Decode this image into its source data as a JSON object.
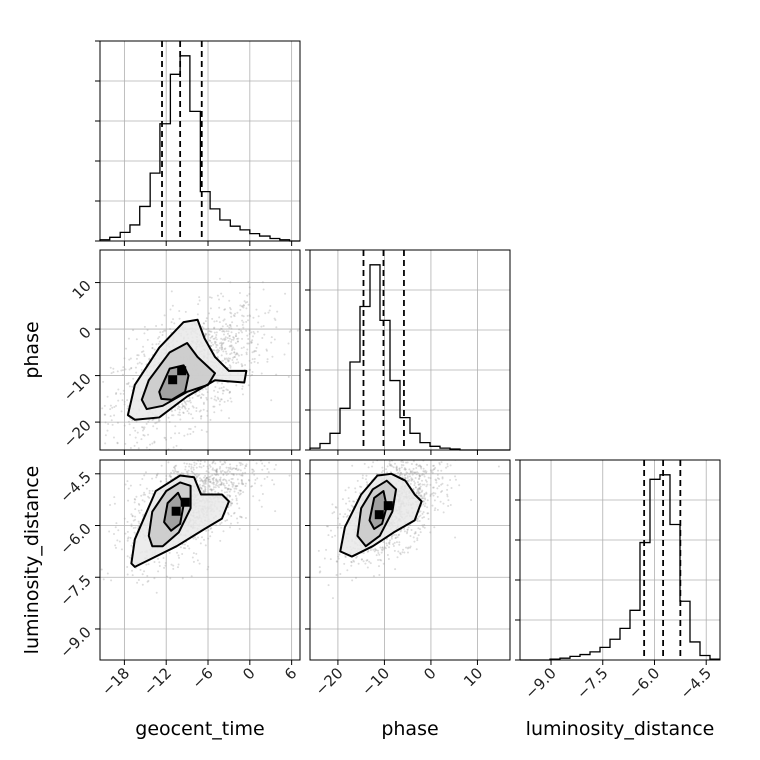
{
  "chart_data": {
    "type": "corner",
    "parameters": [
      "geocent_time",
      "phase",
      "luminosity_distance"
    ],
    "axis_labels": {
      "x": [
        "geocent_time",
        "phase",
        "luminosity_distance"
      ],
      "y": [
        "",
        "phase",
        "luminosity_distance"
      ]
    },
    "grid": true,
    "ranges": {
      "geocent_time": [
        -21.5,
        7.2
      ],
      "phase": [
        -26.0,
        17.0
      ],
      "luminosity_distance": [
        -9.9,
        -4.1
      ]
    },
    "ticks": {
      "geocent_time": [
        -18,
        -12,
        -6,
        0,
        6
      ],
      "phase": [
        -20,
        -10,
        0,
        10
      ],
      "luminosity_distance": [
        -9.0,
        -7.5,
        -6.0,
        -4.5
      ]
    },
    "tick_labels": {
      "geocent_time": [
        "−18",
        "−12",
        "−6",
        "0",
        "6"
      ],
      "phase": [
        "−20",
        "−10",
        "0",
        "10"
      ],
      "luminosity_distance": [
        "−9.0",
        "−7.5",
        "−6.0",
        "−4.5"
      ]
    },
    "quantiles": {
      "geocent_time": [
        -12.6,
        -10.0,
        -6.9
      ],
      "phase": [
        -14.5,
        -10.2,
        -5.8
      ],
      "luminosity_distance": [
        -6.3,
        -5.75,
        -5.25
      ]
    },
    "histograms": {
      "geocent_time": {
        "bin_edges": [
          -21.5,
          -20.1,
          -18.6,
          -17.2,
          -15.8,
          -14.3,
          -12.9,
          -11.4,
          -10.0,
          -8.6,
          -7.1,
          -5.7,
          -4.3,
          -2.8,
          -1.4,
          0.0,
          1.4,
          2.9,
          4.3,
          5.7,
          7.2
        ],
        "counts": [
          1,
          3,
          7,
          13,
          28,
          55,
          95,
          135,
          150,
          105,
          40,
          26,
          17,
          12,
          9,
          6,
          4,
          2,
          1,
          0
        ]
      },
      "phase": {
        "bin_edges": [
          -26.0,
          -23.85,
          -21.7,
          -19.55,
          -17.4,
          -15.25,
          -13.1,
          -10.95,
          -8.8,
          -6.65,
          -4.5,
          -2.35,
          -0.2,
          1.95,
          4.1,
          6.25,
          8.4,
          10.55,
          12.7,
          14.85,
          17.0
        ],
        "counts": [
          2,
          7,
          18,
          45,
          95,
          155,
          200,
          140,
          75,
          35,
          18,
          8,
          4,
          2,
          1,
          0,
          0,
          0,
          0,
          0
        ]
      },
      "luminosity_distance": {
        "bin_edges": [
          -9.9,
          -9.61,
          -9.32,
          -9.03,
          -8.74,
          -8.45,
          -8.16,
          -7.87,
          -7.58,
          -7.29,
          -7.0,
          -6.71,
          -6.42,
          -6.13,
          -5.84,
          -5.55,
          -5.26,
          -4.97,
          -4.68,
          -4.39,
          -4.1
        ],
        "counts": [
          0,
          0,
          0,
          1,
          2,
          4,
          6,
          9,
          14,
          23,
          35,
          55,
          130,
          200,
          205,
          150,
          65,
          20,
          5,
          1
        ]
      }
    },
    "pairs": [
      {
        "x": "geocent_time",
        "y": "phase",
        "mode": [
          -11.0,
          -11.0
        ],
        "contours": [
          [
            [
              -13,
              -13.5
            ],
            [
              -11.5,
              -8.5
            ],
            [
              -9.5,
              -7.8
            ],
            [
              -8.8,
              -10
            ],
            [
              -9.3,
              -13.5
            ],
            [
              -11.2,
              -15.2
            ],
            [
              -12.7,
              -15
            ]
          ],
          [
            [
              -15.5,
              -15.2
            ],
            [
              -14.5,
              -11
            ],
            [
              -11.5,
              -5
            ],
            [
              -9,
              -3
            ],
            [
              -7.5,
              -6
            ],
            [
              -5,
              -9.5
            ],
            [
              -6,
              -12
            ],
            [
              -9,
              -13.5
            ],
            [
              -12.5,
              -16.5
            ],
            [
              -14.8,
              -17.2
            ]
          ],
          [
            [
              -17.5,
              -18.5
            ],
            [
              -16.5,
              -12
            ],
            [
              -13,
              -4
            ],
            [
              -9.5,
              1.5
            ],
            [
              -7.5,
              2
            ],
            [
              -6.5,
              -2
            ],
            [
              -5,
              -6
            ],
            [
              -3,
              -9
            ],
            [
              -0.5,
              -9
            ],
            [
              -0.8,
              -11.5
            ],
            [
              -5,
              -11
            ],
            [
              -9,
              -14.5
            ],
            [
              -13,
              -19
            ],
            [
              -16.5,
              -19.5
            ]
          ]
        ]
      },
      {
        "x": "geocent_time",
        "y": "luminosity_distance",
        "mode": [
          -10.5,
          -5.6
        ],
        "contours": [
          [
            [
              -12.3,
              -5.9
            ],
            [
              -11.8,
              -5.35
            ],
            [
              -10.3,
              -5.05
            ],
            [
              -9.5,
              -5.4
            ],
            [
              -10.0,
              -5.95
            ],
            [
              -11.3,
              -6.15
            ]
          ],
          [
            [
              -14.5,
              -6.3
            ],
            [
              -14.0,
              -5.6
            ],
            [
              -12,
              -5.0
            ],
            [
              -10,
              -4.75
            ],
            [
              -8.5,
              -4.85
            ],
            [
              -8.5,
              -5.5
            ],
            [
              -10.2,
              -6.2
            ],
            [
              -12.5,
              -6.6
            ],
            [
              -14.0,
              -6.6
            ]
          ],
          [
            [
              -17,
              -7.1
            ],
            [
              -16.5,
              -6.4
            ],
            [
              -13.5,
              -5.0
            ],
            [
              -10,
              -4.55
            ],
            [
              -8.0,
              -4.6
            ],
            [
              -7,
              -5.1
            ],
            [
              -4,
              -5.1
            ],
            [
              -3,
              -5.3
            ],
            [
              -4,
              -5.8
            ],
            [
              -6.5,
              -6.1
            ],
            [
              -10.5,
              -6.6
            ],
            [
              -14.5,
              -7.0
            ],
            [
              -16.5,
              -7.2
            ]
          ]
        ]
      },
      {
        "x": "phase",
        "y": "luminosity_distance",
        "mode": [
          -11.0,
          -5.7
        ],
        "contours": [
          [
            [
              -13.2,
              -5.85
            ],
            [
              -12.2,
              -5.2
            ],
            [
              -10.2,
              -5.0
            ],
            [
              -9.5,
              -5.45
            ],
            [
              -10.5,
              -5.95
            ],
            [
              -12.2,
              -6.1
            ]
          ],
          [
            [
              -15.8,
              -6.3
            ],
            [
              -15,
              -5.5
            ],
            [
              -12.5,
              -4.95
            ],
            [
              -9.5,
              -4.7
            ],
            [
              -7.5,
              -4.95
            ],
            [
              -8.3,
              -5.6
            ],
            [
              -11,
              -6.3
            ],
            [
              -14,
              -6.6
            ]
          ],
          [
            [
              -19.5,
              -6.75
            ],
            [
              -18.5,
              -6.05
            ],
            [
              -15,
              -5.1
            ],
            [
              -11.5,
              -4.55
            ],
            [
              -8.5,
              -4.5
            ],
            [
              -5.5,
              -4.7
            ],
            [
              -3.5,
              -5.1
            ],
            [
              -2.0,
              -5.3
            ],
            [
              -3.5,
              -5.85
            ],
            [
              -8,
              -6.2
            ],
            [
              -12.5,
              -6.6
            ],
            [
              -17,
              -6.9
            ]
          ]
        ]
      }
    ]
  }
}
